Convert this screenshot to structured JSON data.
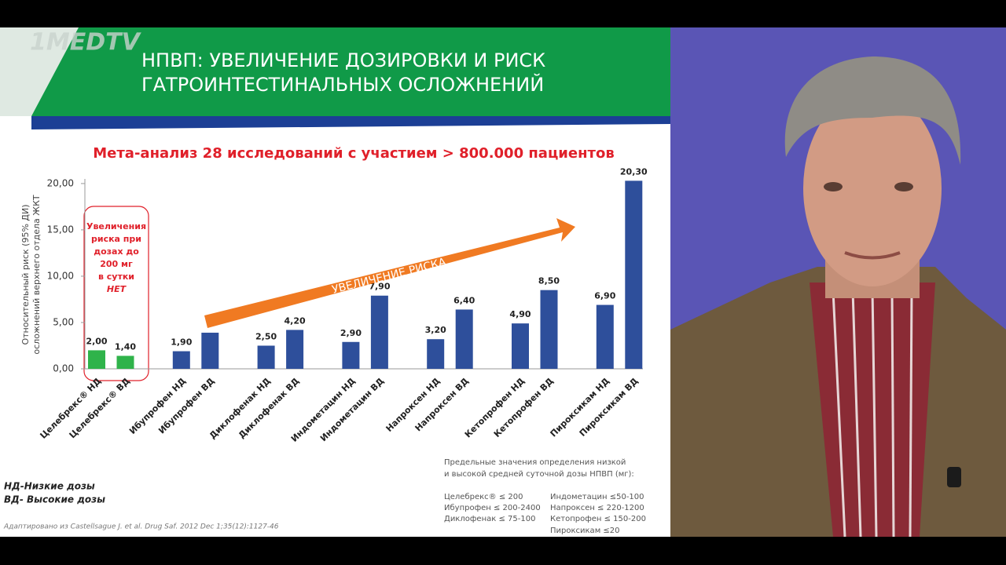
{
  "logo": "1MEDTV",
  "chart_data": {
    "type": "bar",
    "title": "НПВП: УВЕЛИЧЕНИЕ ДОЗИРОВКИ И РИСК ГАТРОИНТЕСТИНАЛЬНЫХ ОСЛОЖНЕНИЙ",
    "subtitle": "Мета-анализ 28 исследований с участием > 800.000 пациентов",
    "y_label": [
      "Относительный  риск (95% ДИ)",
      "осложнений  верхнего отдела ЖКТ"
    ],
    "categories": [
      "Целебрекс® НД",
      "Целебрекс® ВД",
      "Ибупрофен НД",
      "Ибупрофен ВД",
      "Диклофенак НД",
      "Диклофенак ВД",
      "Индометацин НД",
      "Индометацин ВД",
      "Напроксен НД",
      "Напроксен ВД",
      "Кетопрофен НД",
      "Кетопрофен ВД",
      "Пироксикам НД",
      "Пироксикам ВД"
    ],
    "values": [
      2.0,
      1.4,
      1.9,
      3.9,
      2.5,
      4.2,
      2.9,
      7.9,
      3.2,
      6.4,
      4.9,
      8.5,
      6.9,
      20.3
    ],
    "value_labels": [
      "2,00",
      "1,40",
      "1,90",
      null,
      "2,50",
      "4,20",
      "2,90",
      "7,90",
      "3,20",
      "6,40",
      "4,90",
      "8,50",
      "6,90",
      "20,30"
    ],
    "colors": [
      "#2fb34a",
      "#2fb34a",
      "#2e4f9b",
      "#2e4f9b",
      "#2e4f9b",
      "#2e4f9b",
      "#2e4f9b",
      "#2e4f9b",
      "#2e4f9b",
      "#2e4f9b",
      "#2e4f9b",
      "#2e4f9b",
      "#2e4f9b",
      "#2e4f9b"
    ],
    "ylim": [
      0,
      20.5
    ],
    "yticks": [
      {
        "value": 0,
        "label": "0,00"
      },
      {
        "value": 5,
        "label": "5,00"
      },
      {
        "value": 10,
        "label": "10,00"
      },
      {
        "value": 15,
        "label": "15,00"
      },
      {
        "value": 20,
        "label": "20,00"
      }
    ],
    "box_annotation": [
      "Увеличения",
      "риска при",
      "дозах до",
      "200 мг",
      "в сутки",
      "НЕТ"
    ],
    "arrow_label": "УВЕЛИЧЕНИЕ РИСКА",
    "notes": [
      "НД-Низкие дозы",
      "ВД- Высокие дозы"
    ],
    "source": "Адаптировано из  Castellsague J. et al. Drug Saf. 2012 Dec 1;35(12):1127-46",
    "dose_limits": {
      "heading": [
        "Предельные значения определения низкой",
        "и высокой средней суточной дозы НПВП (мг):"
      ],
      "left": [
        "Целебрекс® ≤ 200",
        "Ибупрофен ≤ 200-2400",
        "Диклофенак ≤ 75-100"
      ],
      "right": [
        "Индометацин ≤50-100",
        "Напроксен ≤ 220-1200",
        "Кетопрофен ≤ 150-200",
        "Пироксикам ≤20"
      ]
    }
  }
}
